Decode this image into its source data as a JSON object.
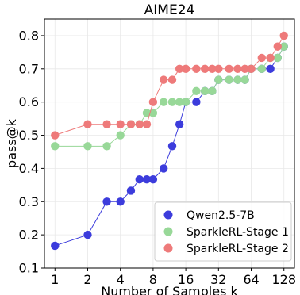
{
  "chart_data": {
    "type": "line",
    "title": "AIME24",
    "xlabel": "Number of Samples k",
    "ylabel": "pass@k",
    "x_scale": "log2",
    "xlim": [
      0.8,
      160
    ],
    "ylim": [
      0.1,
      0.85
    ],
    "xticks": [
      1,
      2,
      4,
      8,
      16,
      32,
      64,
      128
    ],
    "xtick_labels": [
      "1",
      "2",
      "4",
      "8",
      "16",
      "32",
      "64",
      "128"
    ],
    "yticks": [
      0.1,
      0.2,
      0.3,
      0.4,
      0.5,
      0.6,
      0.7,
      0.8
    ],
    "ytick_labels": [
      "0.1",
      "0.2",
      "0.3",
      "0.4",
      "0.5",
      "0.6",
      "0.7",
      "0.8"
    ],
    "grid": true,
    "legend_position": "lower-right",
    "x": [
      1,
      2,
      3,
      4,
      5,
      6,
      7,
      8,
      10,
      12,
      14,
      16,
      20,
      24,
      28,
      32,
      40,
      48,
      56,
      64,
      80,
      96,
      112,
      128
    ],
    "series": [
      {
        "name": "Qwen2.5-7B",
        "color": "#3c3cdc",
        "values": [
          0.167,
          0.2,
          0.3,
          0.3,
          0.333,
          0.367,
          0.367,
          0.367,
          0.4,
          0.467,
          0.533,
          0.6,
          0.6,
          0.633,
          0.633,
          0.667,
          0.667,
          0.667,
          0.667,
          0.7,
          0.7,
          0.7,
          0.733,
          0.767
        ]
      },
      {
        "name": "SparkleRL-Stage 1",
        "color": "#98d898",
        "values": [
          0.467,
          0.467,
          0.467,
          0.5,
          0.533,
          0.533,
          0.567,
          0.567,
          0.6,
          0.6,
          0.6,
          0.6,
          0.633,
          0.633,
          0.633,
          0.667,
          0.667,
          0.667,
          0.667,
          0.7,
          0.7,
          0.733,
          0.733,
          0.767
        ]
      },
      {
        "name": "SparkleRL-Stage 2",
        "color": "#ee7a7a",
        "values": [
          0.5,
          0.533,
          0.533,
          0.533,
          0.533,
          0.533,
          0.533,
          0.6,
          0.667,
          0.667,
          0.7,
          0.7,
          0.7,
          0.7,
          0.7,
          0.7,
          0.7,
          0.7,
          0.7,
          0.7,
          0.733,
          0.733,
          0.767,
          0.8
        ]
      }
    ]
  }
}
